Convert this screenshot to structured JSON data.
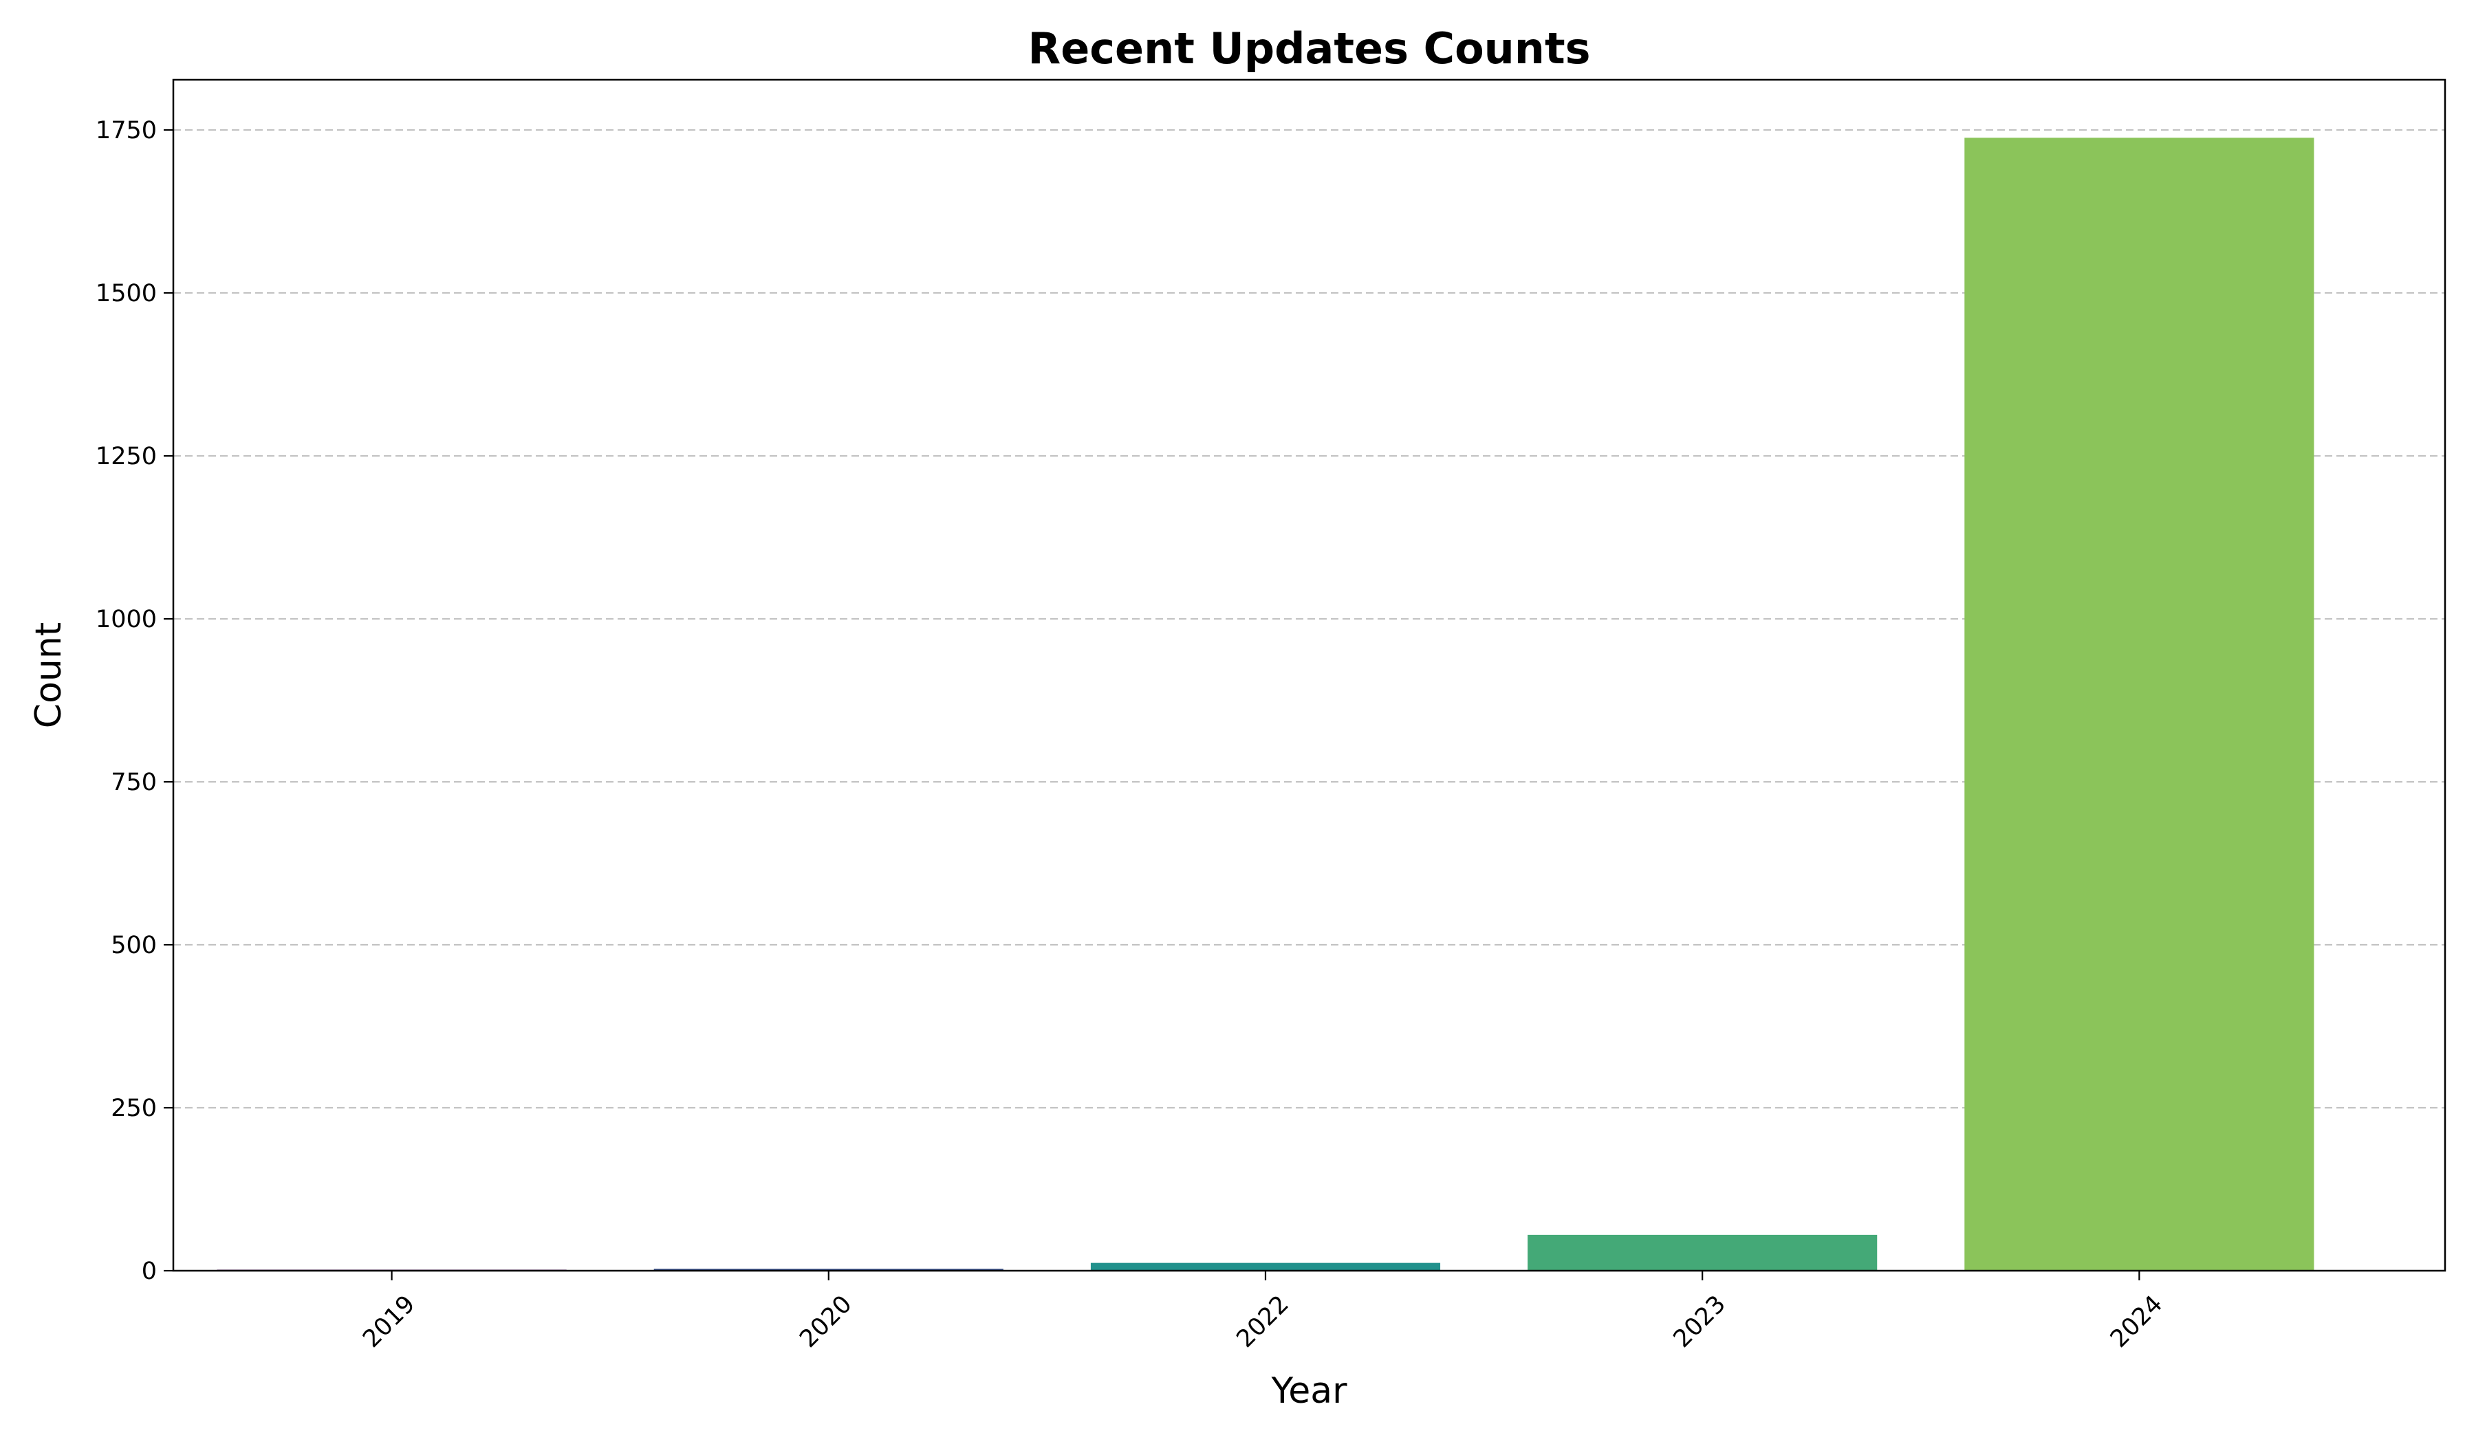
{
  "chart_data": {
    "type": "bar",
    "title": "Recent Updates Counts",
    "xlabel": "Year",
    "ylabel": "Count",
    "categories": [
      "2019",
      "2020",
      "2022",
      "2023",
      "2024"
    ],
    "values": [
      1,
      3,
      12,
      55,
      1738
    ],
    "colors": [
      "#440154",
      "#3b528b",
      "#21918c",
      "#44a977",
      "#8bc45a"
    ],
    "ylim": [
      0,
      1827
    ],
    "yticks": [
      0,
      250,
      500,
      750,
      1000,
      1250,
      1500,
      1750
    ],
    "ytick_labels": [
      "0",
      "250",
      "500",
      "750",
      "1000",
      "1250",
      "1500",
      "1750"
    ],
    "grid": "y-axis, dashed",
    "xtick_rotation": 45
  }
}
